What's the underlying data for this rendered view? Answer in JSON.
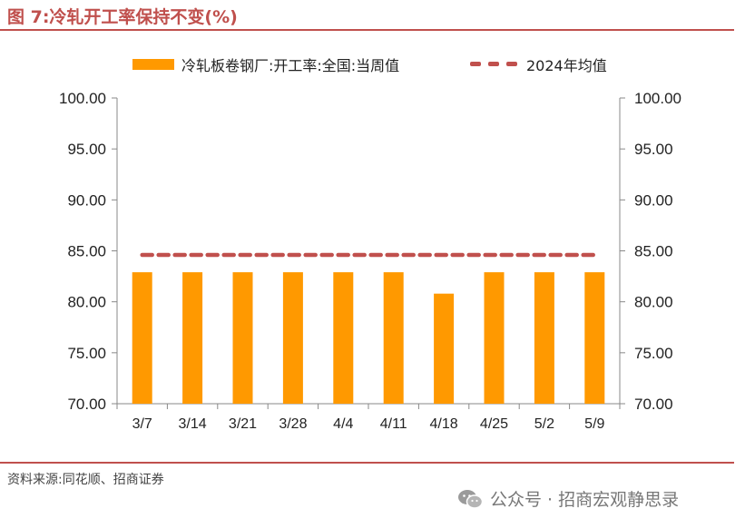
{
  "title": "图 7:冷轧开工率保持不变(%)",
  "source": "资料来源:同花顺、招商证券",
  "watermark": "公众号 · 招商宏观静思录",
  "colors": {
    "bar": "#ff9900",
    "avg": "#c0504d",
    "accent": "#c0504d",
    "axis": "#888888"
  },
  "chart_data": {
    "type": "bar",
    "categories": [
      "3/7",
      "3/14",
      "3/21",
      "3/28",
      "4/4",
      "4/11",
      "4/18",
      "4/25",
      "5/2",
      "5/9"
    ],
    "series": [
      {
        "name": "冷轧板卷钢厂:开工率:全国:当周值",
        "kind": "bar",
        "values": [
          82.9,
          82.9,
          82.9,
          82.9,
          82.9,
          82.9,
          80.8,
          82.9,
          82.9,
          82.9
        ]
      },
      {
        "name": "2024年均值",
        "kind": "dashed-line",
        "values": [
          84.6,
          84.6,
          84.6,
          84.6,
          84.6,
          84.6,
          84.6,
          84.6,
          84.6,
          84.6
        ]
      }
    ],
    "ylim": [
      70,
      100
    ],
    "yticks": [
      "70.00",
      "75.00",
      "80.00",
      "85.00",
      "90.00",
      "95.00",
      "100.00"
    ],
    "y2ticks": [
      "70.00",
      "75.00",
      "80.00",
      "85.00",
      "90.00",
      "95.00",
      "100.00"
    ],
    "legend_position": "top",
    "grid": false
  }
}
